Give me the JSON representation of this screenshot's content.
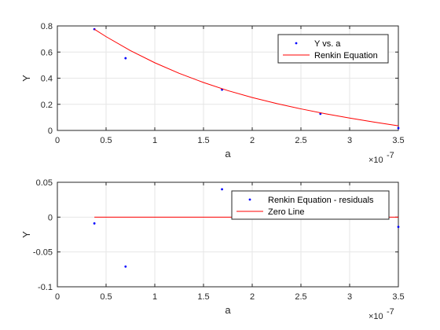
{
  "chart_data": [
    {
      "type": "scatter",
      "xlabel": "a",
      "ylabel": "Y",
      "x_exponent_label": "×10",
      "x_exponent_power": "-7",
      "xlim": [
        0,
        3.5
      ],
      "ylim": [
        0,
        0.8
      ],
      "xticks": [
        "0",
        "0.5",
        "1",
        "1.5",
        "2",
        "2.5",
        "3",
        "3.5"
      ],
      "yticks": [
        "0",
        "0.2",
        "0.4",
        "0.6",
        "0.8"
      ],
      "grid": true,
      "legend_position": "top-right",
      "series": [
        {
          "name": "Y vs. a",
          "style": "points",
          "color": "#0000ff",
          "x": [
            0.38,
            0.7,
            1.69,
            2.7,
            3.5
          ],
          "y": [
            0.775,
            0.553,
            0.312,
            0.127,
            0.018
          ]
        },
        {
          "name": "Renkin Equation",
          "style": "line",
          "color": "#ff0000",
          "x": [
            0.38,
            0.5,
            0.75,
            1.0,
            1.25,
            1.5,
            1.75,
            2.0,
            2.25,
            2.5,
            2.75,
            3.0,
            3.25,
            3.5
          ],
          "y": [
            0.775,
            0.718,
            0.611,
            0.518,
            0.437,
            0.367,
            0.305,
            0.252,
            0.206,
            0.165,
            0.128,
            0.095,
            0.064,
            0.035
          ]
        }
      ]
    },
    {
      "type": "scatter",
      "xlabel": "a",
      "ylabel": "Y",
      "x_exponent_label": "×10",
      "x_exponent_power": "-7",
      "xlim": [
        0,
        3.5
      ],
      "ylim": [
        -0.1,
        0.05
      ],
      "xticks": [
        "0",
        "0.5",
        "1",
        "1.5",
        "2",
        "2.5",
        "3",
        "3.5"
      ],
      "yticks": [
        "-0.1",
        "-0.05",
        "0",
        "0.05"
      ],
      "grid": true,
      "legend_position": "top-right",
      "series": [
        {
          "name": "Renkin Equation - residuals",
          "style": "points",
          "color": "#0000ff",
          "x": [
            0.38,
            0.7,
            1.69,
            3.5
          ],
          "y": [
            -0.009,
            -0.071,
            0.04,
            -0.014
          ]
        },
        {
          "name": "Zero Line",
          "style": "line",
          "color": "#ff0000",
          "x": [
            0.38,
            3.5
          ],
          "y": [
            0,
            0
          ]
        }
      ]
    }
  ]
}
